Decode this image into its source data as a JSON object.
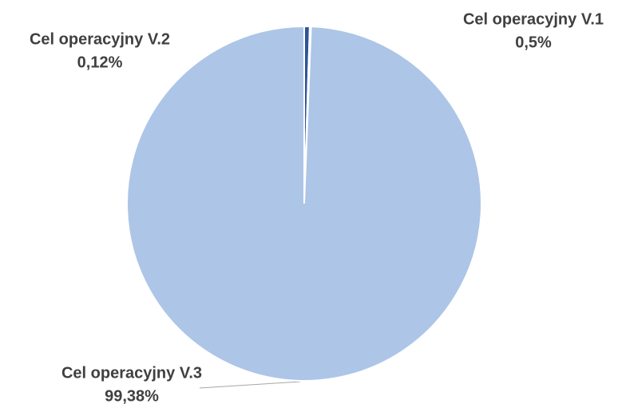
{
  "chart_data": {
    "type": "pie",
    "categories": [
      "Cel operacyjny V.1",
      "Cel operacyjny V.2",
      "Cel operacyjny V.3"
    ],
    "values": [
      0.5,
      0.12,
      99.38
    ],
    "value_labels": [
      "0,5%",
      "0,12%",
      "99,38%"
    ],
    "colors": [
      "#2f5597",
      "#8faadc",
      "#adc5e7"
    ]
  }
}
